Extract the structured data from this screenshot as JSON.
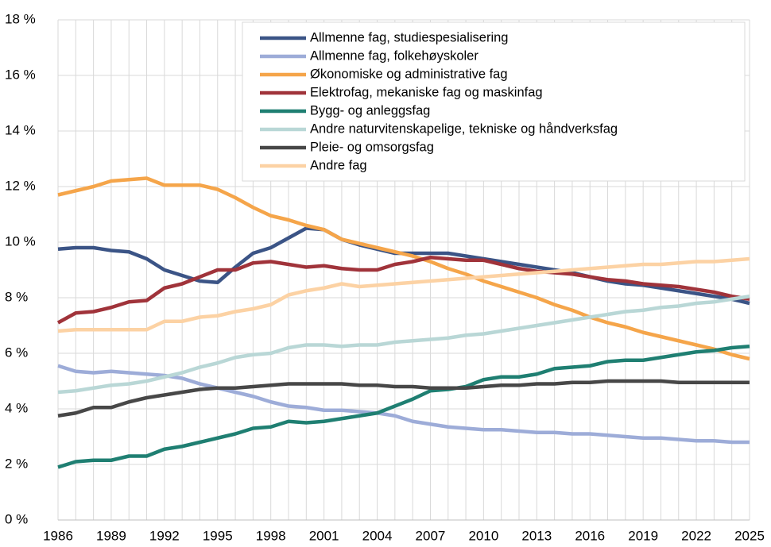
{
  "chart_data": {
    "type": "line",
    "x": [
      1986,
      1987,
      1988,
      1989,
      1990,
      1991,
      1992,
      1993,
      1994,
      1995,
      1996,
      1997,
      1998,
      1999,
      2000,
      2001,
      2002,
      2003,
      2004,
      2005,
      2006,
      2007,
      2008,
      2009,
      2010,
      2011,
      2012,
      2013,
      2014,
      2015,
      2016,
      2017,
      2018,
      2019,
      2020,
      2021,
      2022,
      2023,
      2024,
      2025
    ],
    "xlim": [
      1986,
      2025
    ],
    "xticks": [
      1986,
      1989,
      1992,
      1995,
      1998,
      2001,
      2004,
      2007,
      2010,
      2013,
      2016,
      2019,
      2022,
      2025
    ],
    "ylim": [
      0,
      18
    ],
    "yticks": [
      {
        "value": 0,
        "label": "0 %"
      },
      {
        "value": 2,
        "label": "2 %"
      },
      {
        "value": 4,
        "label": "4 %"
      },
      {
        "value": 6,
        "label": "6 %"
      },
      {
        "value": 8,
        "label": "8 %"
      },
      {
        "value": 10,
        "label": "10 %"
      },
      {
        "value": 12,
        "label": "12 %"
      },
      {
        "value": 14,
        "label": "14 %"
      },
      {
        "value": 16,
        "label": "16 %"
      },
      {
        "value": 18,
        "label": "18 %"
      }
    ],
    "grid": true,
    "legend": "top-right",
    "series": [
      {
        "name": "Allmenne fag, studiespesialisering",
        "color": "#3b5486",
        "values": [
          9.75,
          9.8,
          9.8,
          9.7,
          9.65,
          9.4,
          9.0,
          8.8,
          8.6,
          8.55,
          9.1,
          9.6,
          9.8,
          10.15,
          10.5,
          10.45,
          10.1,
          9.9,
          9.75,
          9.6,
          9.6,
          9.6,
          9.6,
          9.5,
          9.4,
          9.3,
          9.2,
          9.1,
          9.0,
          8.9,
          8.75,
          8.6,
          8.5,
          8.45,
          8.35,
          8.25,
          8.15,
          8.05,
          7.95,
          7.8
        ]
      },
      {
        "name": "Allmenne fag, folkehøyskoler",
        "color": "#9dacd8",
        "values": [
          5.55,
          5.35,
          5.3,
          5.35,
          5.3,
          5.25,
          5.2,
          5.1,
          4.9,
          4.75,
          4.6,
          4.45,
          4.25,
          4.1,
          4.05,
          3.95,
          3.95,
          3.9,
          3.85,
          3.75,
          3.55,
          3.45,
          3.35,
          3.3,
          3.25,
          3.25,
          3.2,
          3.15,
          3.15,
          3.1,
          3.1,
          3.05,
          3.0,
          2.95,
          2.95,
          2.9,
          2.85,
          2.85,
          2.8,
          2.8
        ]
      },
      {
        "name": "Økonomiske og administrative fag",
        "color": "#f5a54a",
        "values": [
          11.7,
          11.85,
          12.0,
          12.2,
          12.25,
          12.3,
          12.05,
          12.05,
          12.05,
          11.9,
          11.6,
          11.25,
          10.95,
          10.8,
          10.6,
          10.45,
          10.1,
          9.95,
          9.8,
          9.65,
          9.5,
          9.3,
          9.05,
          8.85,
          8.6,
          8.4,
          8.2,
          8.0,
          7.75,
          7.55,
          7.3,
          7.1,
          6.95,
          6.75,
          6.6,
          6.45,
          6.3,
          6.15,
          5.95,
          5.8
        ]
      },
      {
        "name": "Elektrofag, mekaniske fag og maskinfag",
        "color": "#a0333a",
        "values": [
          7.1,
          7.45,
          7.5,
          7.65,
          7.85,
          7.9,
          8.35,
          8.5,
          8.75,
          9.0,
          9.0,
          9.25,
          9.3,
          9.2,
          9.1,
          9.15,
          9.05,
          9.0,
          9.0,
          9.2,
          9.3,
          9.45,
          9.4,
          9.35,
          9.35,
          9.2,
          9.05,
          8.95,
          8.9,
          8.85,
          8.75,
          8.65,
          8.6,
          8.5,
          8.45,
          8.4,
          8.3,
          8.2,
          8.05,
          7.95
        ]
      },
      {
        "name": "Bygg- og anleggsfag",
        "color": "#1f7f72",
        "values": [
          1.9,
          2.1,
          2.15,
          2.15,
          2.3,
          2.3,
          2.55,
          2.65,
          2.8,
          2.95,
          3.1,
          3.3,
          3.35,
          3.55,
          3.5,
          3.55,
          3.65,
          3.75,
          3.85,
          4.1,
          4.35,
          4.65,
          4.7,
          4.8,
          5.05,
          5.15,
          5.15,
          5.25,
          5.45,
          5.5,
          5.55,
          5.7,
          5.75,
          5.75,
          5.85,
          5.95,
          6.05,
          6.1,
          6.2,
          6.25
        ]
      },
      {
        "name": "Andre naturvitenskapelige, tekniske og håndverksfag",
        "color": "#b9d7d6",
        "values": [
          4.6,
          4.65,
          4.75,
          4.85,
          4.9,
          5.0,
          5.15,
          5.3,
          5.5,
          5.65,
          5.85,
          5.95,
          6.0,
          6.2,
          6.3,
          6.3,
          6.25,
          6.3,
          6.3,
          6.4,
          6.45,
          6.5,
          6.55,
          6.65,
          6.7,
          6.8,
          6.9,
          7.0,
          7.1,
          7.2,
          7.3,
          7.4,
          7.5,
          7.55,
          7.65,
          7.7,
          7.8,
          7.85,
          7.95,
          8.05
        ]
      },
      {
        "name": "Pleie- og omsorgsfag",
        "color": "#474747",
        "values": [
          3.75,
          3.85,
          4.05,
          4.05,
          4.25,
          4.4,
          4.5,
          4.6,
          4.7,
          4.75,
          4.75,
          4.8,
          4.85,
          4.9,
          4.9,
          4.9,
          4.9,
          4.85,
          4.85,
          4.8,
          4.8,
          4.75,
          4.75,
          4.75,
          4.8,
          4.85,
          4.85,
          4.9,
          4.9,
          4.95,
          4.95,
          5.0,
          5.0,
          5.0,
          5.0,
          4.95,
          4.95,
          4.95,
          4.95,
          4.95
        ]
      },
      {
        "name": "Andre fag",
        "color": "#fcd2a4",
        "values": [
          6.8,
          6.85,
          6.85,
          6.85,
          6.85,
          6.85,
          7.15,
          7.15,
          7.3,
          7.35,
          7.5,
          7.6,
          7.75,
          8.1,
          8.25,
          8.35,
          8.5,
          8.4,
          8.45,
          8.5,
          8.55,
          8.6,
          8.65,
          8.7,
          8.75,
          8.8,
          8.85,
          8.9,
          8.95,
          9.0,
          9.05,
          9.1,
          9.15,
          9.2,
          9.2,
          9.25,
          9.3,
          9.3,
          9.35,
          9.4
        ]
      }
    ]
  }
}
